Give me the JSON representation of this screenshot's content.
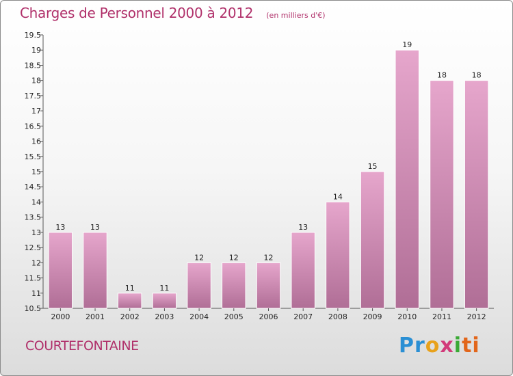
{
  "header": {
    "title": "Charges de Personnel 2000 à 2012",
    "subtitle": "(en milliers d'€)"
  },
  "footer": {
    "commune": "COURTEFONTAINE",
    "logo": [
      "Pr",
      "o",
      "x",
      "i",
      "ti"
    ]
  },
  "colors": {
    "bar_top": "#e6a6cc",
    "bar_bottom": "#b06e96",
    "accent": "#b0306a"
  },
  "chart_data": {
    "type": "bar",
    "title": "Charges de Personnel 2000 à 2012",
    "subtitle": "(en milliers d'€)",
    "xlabel": "",
    "ylabel": "",
    "categories": [
      "2000",
      "2001",
      "2002",
      "2003",
      "2004",
      "2005",
      "2006",
      "2007",
      "2008",
      "2009",
      "2010",
      "2011",
      "2012"
    ],
    "values": [
      13,
      13,
      11,
      11,
      12,
      12,
      12,
      13,
      14,
      15,
      19,
      18,
      18
    ],
    "labels": [
      "13",
      "13",
      "11",
      "11",
      "12",
      "12",
      "12",
      "13",
      "14",
      "15",
      "19",
      "18",
      "18"
    ],
    "ylim": [
      10.5,
      19.5
    ],
    "yticks": [
      "10.5",
      "11",
      "11.5",
      "12",
      "12.5",
      "13",
      "13.5",
      "14",
      "14.5",
      "15",
      "15.5",
      "16",
      "16.5",
      "17",
      "17.5",
      "18",
      "18.5",
      "19",
      "19.5"
    ],
    "grid": false,
    "legend": "none"
  }
}
